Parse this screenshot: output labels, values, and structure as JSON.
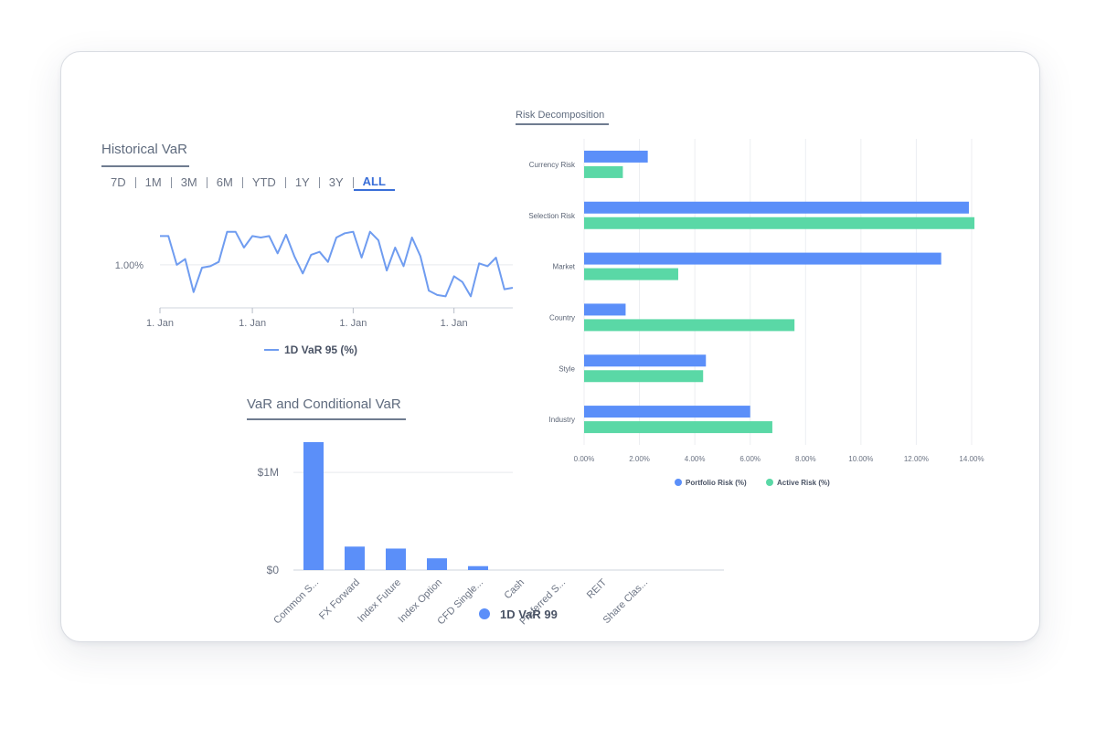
{
  "historical": {
    "title": "Historical VaR",
    "ranges": [
      "7D",
      "1M",
      "3M",
      "6M",
      "YTD",
      "1Y",
      "3Y",
      "ALL"
    ],
    "active_range": "ALL"
  },
  "decomposition": {
    "title": "Risk Decomposition"
  },
  "conditional": {
    "title": "VaR and Conditional VaR"
  },
  "colors": {
    "blue": "#5b8ff9",
    "green": "#5ad8a6",
    "line": "#6f9cf0",
    "title": "#5f6b7e",
    "axis": "#6b7383"
  },
  "chart_data": [
    {
      "type": "line",
      "name": "historical-var",
      "y_tick_labels": [
        "1.00%"
      ],
      "y_ticks": [
        1.0
      ],
      "ylim": [
        0.7,
        1.4
      ],
      "x_tick_labels": [
        "1. Jan",
        "1. Jan",
        "1. Jan",
        "1. Jan"
      ],
      "x_tick_index": [
        0,
        11,
        23,
        35
      ],
      "series": [
        {
          "name": "1D VaR 95 (%)",
          "values": [
            1.2,
            1.2,
            1.0,
            1.04,
            0.81,
            0.98,
            0.99,
            1.02,
            1.23,
            1.23,
            1.12,
            1.2,
            1.19,
            1.2,
            1.08,
            1.21,
            1.06,
            0.94,
            1.07,
            1.09,
            1.02,
            1.19,
            1.22,
            1.23,
            1.05,
            1.23,
            1.17,
            0.96,
            1.12,
            0.99,
            1.19,
            1.06,
            0.82,
            0.79,
            0.78,
            0.92,
            0.88,
            0.78,
            1.01,
            0.99,
            1.05,
            0.83,
            0.84
          ]
        }
      ],
      "legend": "bottom"
    },
    {
      "type": "bar",
      "name": "risk-decomposition",
      "orientation": "horizontal",
      "categories": [
        "Currency Risk",
        "Selection Risk",
        "Market",
        "Country",
        "Style",
        "Industry"
      ],
      "series": [
        {
          "name": "Portfolio Risk (%)",
          "values": [
            2.3,
            13.9,
            12.9,
            1.5,
            4.4,
            6.0
          ]
        },
        {
          "name": "Active Risk (%)",
          "values": [
            1.4,
            14.1,
            3.4,
            7.6,
            4.3,
            6.8
          ]
        }
      ],
      "x_tick_labels": [
        "0.00%",
        "2.00%",
        "4.00%",
        "6.00%",
        "8.00%",
        "10.00%",
        "12.00%",
        "14.00%"
      ],
      "xlim": [
        0,
        14
      ],
      "legend": "bottom"
    },
    {
      "type": "bar",
      "name": "var-conditional",
      "categories": [
        "Common S...",
        "FX Forward",
        "Index Future",
        "Index Option",
        "CFD Single...",
        "Cash",
        "Preferred S...",
        "REIT",
        "Share Clas..."
      ],
      "series": [
        {
          "name": "1D VaR 99",
          "values": [
            1310000,
            240000,
            220000,
            120000,
            40000,
            0,
            0,
            0,
            0
          ]
        }
      ],
      "y_tick_labels": [
        "$0",
        "$1M"
      ],
      "y_ticks": [
        0,
        1000000
      ],
      "ylim": [
        0,
        1300000
      ],
      "legend": "bottom"
    }
  ]
}
